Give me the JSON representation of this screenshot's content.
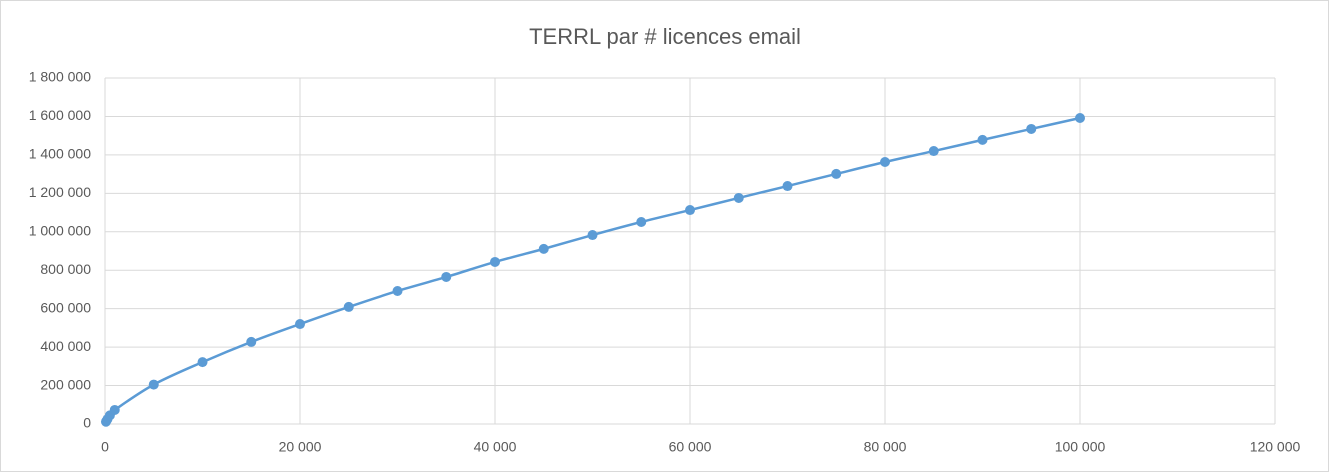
{
  "chart_data": {
    "type": "scatter-smooth",
    "title": "TERRL par # licences email",
    "x": [
      100,
      250,
      500,
      1000,
      5000,
      10000,
      15000,
      20000,
      25000,
      30000,
      35000,
      40000,
      45000,
      50000,
      55000,
      60000,
      65000,
      70000,
      75000,
      80000,
      85000,
      90000,
      95000,
      100000
    ],
    "values": [
      12000,
      25000,
      45000,
      73000,
      205000,
      322000,
      427000,
      520000,
      609000,
      692000,
      765000,
      843000,
      911000,
      983000,
      1051000,
      1113000,
      1176000,
      1238000,
      1301000,
      1363000,
      1420000,
      1478000,
      1535000,
      1592000
    ],
    "color": "#5b9bd5",
    "xlim": [
      0,
      120000
    ],
    "xticks": [
      0,
      {
        "value": 20000,
        "label": "20 000"
      },
      {
        "value": 40000,
        "label": "40 000"
      },
      {
        "value": 60000,
        "label": "60 000"
      },
      {
        "value": 80000,
        "label": "80 000"
      },
      {
        "value": 100000,
        "label": "100 000"
      },
      {
        "value": 120000,
        "label": "120 000"
      }
    ],
    "ylim": [
      0,
      1800000
    ],
    "yticks": [
      0,
      {
        "value": 200000,
        "label": "200 000"
      },
      {
        "value": 400000,
        "label": "400 000"
      },
      {
        "value": 600000,
        "label": "600 000"
      },
      {
        "value": 800000,
        "label": "800 000"
      },
      {
        "value": 1000000,
        "label": "1 000 000"
      },
      {
        "value": 1200000,
        "label": "1 200 000"
      },
      {
        "value": 1400000,
        "label": "1 400 000"
      },
      {
        "value": 1600000,
        "label": "1 600 000"
      },
      {
        "value": 1800000,
        "label": "1 800 000"
      }
    ],
    "grid": true
  }
}
